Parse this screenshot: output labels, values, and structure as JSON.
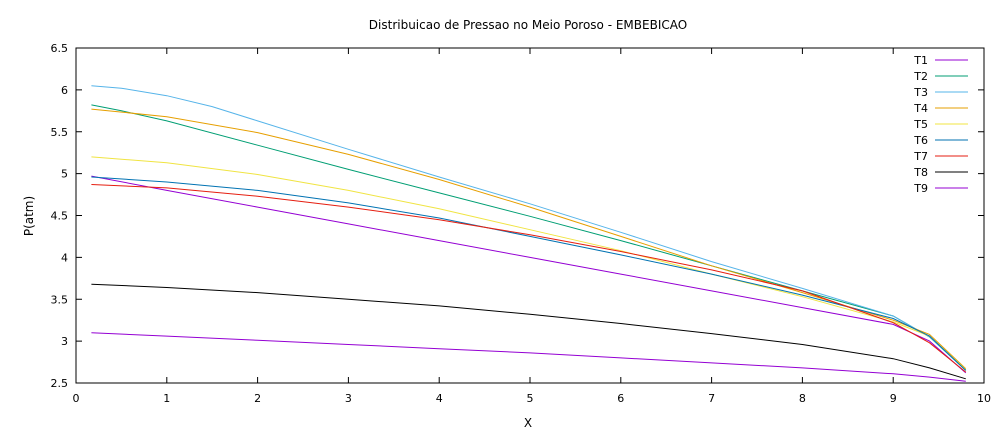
{
  "chart_data": {
    "type": "line",
    "title": "Distribuicao de Pressao no Meio Poroso - EMBEBICAO",
    "xlabel": "X",
    "ylabel": "P(atm)",
    "xlim": [
      0,
      10
    ],
    "ylim": [
      2.5,
      6.5
    ],
    "xticks": [
      0,
      1,
      2,
      3,
      4,
      5,
      6,
      7,
      8,
      9,
      10
    ],
    "yticks": [
      2.5,
      3,
      3.5,
      4,
      4.5,
      5,
      5.5,
      6,
      6.5
    ],
    "grid": false,
    "legend_position": "top-right",
    "series": [
      {
        "name": "T1",
        "color": "#9400d3",
        "x": [
          0.17,
          1,
          2,
          3,
          4,
          5,
          6,
          7,
          8,
          9,
          9.4,
          9.8
        ],
        "y": [
          4.97,
          4.8,
          4.6,
          4.4,
          4.2,
          4.0,
          3.8,
          3.6,
          3.4,
          3.2,
          3.0,
          2.62
        ]
      },
      {
        "name": "T2",
        "color": "#009e73",
        "x": [
          0.17,
          0.5,
          1,
          2,
          3,
          4,
          5,
          6,
          7,
          8,
          9,
          9.4,
          9.8
        ],
        "y": [
          5.82,
          5.75,
          5.63,
          5.34,
          5.05,
          4.77,
          4.49,
          4.2,
          3.9,
          3.6,
          3.3,
          3.05,
          2.65
        ]
      },
      {
        "name": "T3",
        "color": "#56b4e9",
        "x": [
          0.17,
          0.5,
          1,
          1.5,
          2,
          3,
          4,
          5,
          6,
          7,
          8,
          9,
          9.4,
          9.8
        ],
        "y": [
          6.05,
          6.02,
          5.93,
          5.8,
          5.63,
          5.29,
          4.96,
          4.64,
          4.3,
          3.95,
          3.63,
          3.3,
          3.05,
          2.65
        ]
      },
      {
        "name": "T4",
        "color": "#e69f00",
        "x": [
          0.17,
          1,
          2,
          3,
          4,
          5,
          6,
          7,
          8,
          9,
          9.4,
          9.8
        ],
        "y": [
          5.77,
          5.68,
          5.49,
          5.23,
          4.93,
          4.6,
          4.25,
          3.9,
          3.58,
          3.25,
          3.08,
          2.67
        ]
      },
      {
        "name": "T5",
        "color": "#f0e442",
        "x": [
          0.17,
          1,
          2,
          3,
          4,
          5,
          6,
          7,
          8,
          9,
          9.4,
          9.8
        ],
        "y": [
          5.2,
          5.13,
          4.99,
          4.8,
          4.58,
          4.33,
          4.08,
          3.8,
          3.53,
          3.23,
          3.06,
          2.66
        ]
      },
      {
        "name": "T6",
        "color": "#0072b2",
        "x": [
          0.17,
          1,
          2,
          3,
          4,
          5,
          6,
          7,
          8,
          9,
          9.4,
          9.8
        ],
        "y": [
          4.96,
          4.9,
          4.8,
          4.65,
          4.47,
          4.25,
          4.03,
          3.8,
          3.55,
          3.27,
          3.06,
          2.65
        ]
      },
      {
        "name": "T7",
        "color": "#e51e10",
        "x": [
          0.17,
          1,
          2,
          3,
          4,
          5,
          6,
          7,
          8,
          9,
          9.4,
          9.8
        ],
        "y": [
          4.87,
          4.83,
          4.73,
          4.6,
          4.45,
          4.27,
          4.07,
          3.85,
          3.6,
          3.22,
          2.98,
          2.63
        ]
      },
      {
        "name": "T8",
        "color": "#000000",
        "x": [
          0.17,
          1,
          2,
          3,
          4,
          5,
          6,
          7,
          8,
          9,
          9.4,
          9.8
        ],
        "y": [
          3.68,
          3.64,
          3.58,
          3.5,
          3.42,
          3.32,
          3.21,
          3.09,
          2.96,
          2.79,
          2.68,
          2.55
        ]
      },
      {
        "name": "T9",
        "color": "#9400d3",
        "x": [
          0.17,
          1,
          2,
          3,
          4,
          5,
          6,
          7,
          8,
          9,
          9.4,
          9.8
        ],
        "y": [
          3.1,
          3.06,
          3.01,
          2.96,
          2.91,
          2.86,
          2.8,
          2.74,
          2.68,
          2.61,
          2.57,
          2.52
        ]
      }
    ]
  }
}
